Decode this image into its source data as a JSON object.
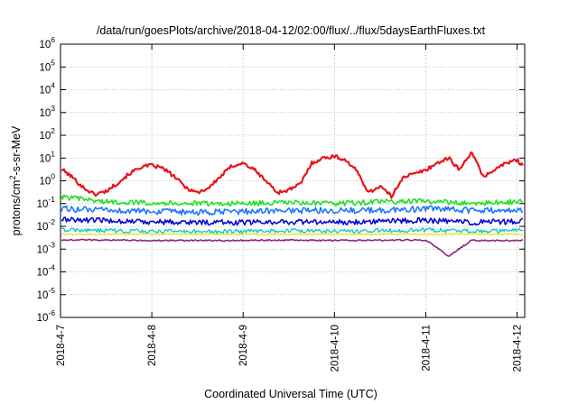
{
  "chart_data": {
    "type": "line",
    "title": "/data/run/goesPlots/archive/2018-04-12/02:00/flux/../flux/5daysEarthFluxes.txt",
    "xlabel": "Coordinated Universal Time (UTC)",
    "ylabel": {
      "prefix": "protons/cm",
      "sup": "2",
      "suffix": "-s-sr-MeV"
    },
    "y_scale": "log",
    "ylim": [
      1e-06,
      1000000.0
    ],
    "y_ticks": [
      {
        "exp": -6,
        "base": "10",
        "sup": "-6"
      },
      {
        "exp": -5,
        "base": "10",
        "sup": "-5"
      },
      {
        "exp": -4,
        "base": "10",
        "sup": "-4"
      },
      {
        "exp": -3,
        "base": "10",
        "sup": "-3"
      },
      {
        "exp": -2,
        "base": "10",
        "sup": "-2"
      },
      {
        "exp": -1,
        "base": "10",
        "sup": "-1"
      },
      {
        "exp": 0,
        "base": "10",
        "sup": "0"
      },
      {
        "exp": 1,
        "base": "10",
        "sup": "1"
      },
      {
        "exp": 2,
        "base": "10",
        "sup": "2"
      },
      {
        "exp": 3,
        "base": "10",
        "sup": "3"
      },
      {
        "exp": 4,
        "base": "10",
        "sup": "4"
      },
      {
        "exp": 5,
        "base": "10",
        "sup": "5"
      },
      {
        "exp": 6,
        "base": "10",
        "sup": "6"
      }
    ],
    "xlim": [
      "2018-04-07T00:00",
      "2018-04-12T02:00"
    ],
    "x_ticks": [
      {
        "date": "2018-04-07T00:00",
        "label": "2018-4-7"
      },
      {
        "date": "2018-04-08T00:00",
        "label": "2018-4-8"
      },
      {
        "date": "2018-04-09T00:00",
        "label": "2018-4-9"
      },
      {
        "date": "2018-04-10T00:00",
        "label": "2018-4-10"
      },
      {
        "date": "2018-04-11T00:00",
        "label": "2018-4-11"
      },
      {
        "date": "2018-04-12T00:00",
        "label": "2018-4-12"
      }
    ],
    "grid": true,
    "grid_style": "dotted",
    "series": [
      {
        "color": "#e8141a",
        "width": 2.2,
        "x": [
          "2018-04-07T00:00",
          "2018-04-07T03:00",
          "2018-04-07T06:00",
          "2018-04-07T09:00",
          "2018-04-07T12:00",
          "2018-04-07T15:00",
          "2018-04-07T18:00",
          "2018-04-07T21:00",
          "2018-04-08T00:00",
          "2018-04-08T03:00",
          "2018-04-08T06:00",
          "2018-04-08T09:00",
          "2018-04-08T12:00",
          "2018-04-08T15:00",
          "2018-04-08T18:00",
          "2018-04-08T21:00",
          "2018-04-09T00:00",
          "2018-04-09T03:00",
          "2018-04-09T06:00",
          "2018-04-09T09:00",
          "2018-04-09T12:00",
          "2018-04-09T15:00",
          "2018-04-09T18:00",
          "2018-04-09T21:00",
          "2018-04-10T00:00",
          "2018-04-10T03:00",
          "2018-04-10T06:00",
          "2018-04-10T09:00",
          "2018-04-10T12:00",
          "2018-04-10T15:00",
          "2018-04-10T18:00",
          "2018-04-10T21:00",
          "2018-04-11T00:00",
          "2018-04-11T03:00",
          "2018-04-11T06:00",
          "2018-04-11T09:00",
          "2018-04-11T12:00",
          "2018-04-11T15:00",
          "2018-04-11T18:00",
          "2018-04-11T21:00",
          "2018-04-12T00:00",
          "2018-04-12T02:00"
        ],
        "y": [
          3.5,
          1.5,
          0.5,
          0.25,
          0.35,
          0.8,
          2.0,
          4.0,
          4.8,
          3.5,
          1.5,
          0.5,
          0.3,
          0.5,
          1.5,
          4.5,
          6.0,
          3.0,
          1.0,
          0.3,
          0.4,
          0.7,
          6.0,
          10.0,
          12.0,
          8.0,
          2.5,
          0.3,
          0.6,
          0.2,
          1.5,
          2.0,
          3.0,
          6.0,
          10.0,
          3.0,
          20.0,
          1.5,
          3.0,
          6.0,
          8.0,
          4.0
        ]
      },
      {
        "color": "#22e022",
        "width": 1.6,
        "x": [
          "2018-04-07T00:00",
          "2018-04-07T12:00",
          "2018-04-08T00:00",
          "2018-04-08T12:00",
          "2018-04-09T00:00",
          "2018-04-09T12:00",
          "2018-04-10T00:00",
          "2018-04-10T12:00",
          "2018-04-11T00:00",
          "2018-04-11T12:00",
          "2018-04-12T00:00",
          "2018-04-12T02:00"
        ],
        "y": [
          0.2,
          0.12,
          0.11,
          0.1,
          0.1,
          0.11,
          0.1,
          0.12,
          0.13,
          0.1,
          0.12,
          0.13
        ]
      },
      {
        "color": "#1e78ff",
        "width": 1.6,
        "x": [
          "2018-04-07T00:00",
          "2018-04-07T12:00",
          "2018-04-08T00:00",
          "2018-04-08T12:00",
          "2018-04-09T00:00",
          "2018-04-09T12:00",
          "2018-04-10T00:00",
          "2018-04-10T12:00",
          "2018-04-11T00:00",
          "2018-04-11T12:00",
          "2018-04-12T00:00",
          "2018-04-12T02:00"
        ],
        "y": [
          0.06,
          0.05,
          0.045,
          0.04,
          0.045,
          0.05,
          0.05,
          0.05,
          0.06,
          0.05,
          0.05,
          0.06
        ]
      },
      {
        "color": "#0a0ad2",
        "width": 1.6,
        "x": [
          "2018-04-07T00:00",
          "2018-04-07T12:00",
          "2018-04-08T00:00",
          "2018-04-08T12:00",
          "2018-04-09T00:00",
          "2018-04-09T12:00",
          "2018-04-10T00:00",
          "2018-04-10T12:00",
          "2018-04-11T00:00",
          "2018-04-11T12:00",
          "2018-04-12T00:00",
          "2018-04-12T02:00"
        ],
        "y": [
          0.02,
          0.018,
          0.016,
          0.015,
          0.015,
          0.016,
          0.015,
          0.017,
          0.018,
          0.015,
          0.016,
          0.02
        ]
      },
      {
        "color": "#14c8c8",
        "width": 1.4,
        "x": [
          "2018-04-07T00:00",
          "2018-04-07T12:00",
          "2018-04-08T00:00",
          "2018-04-08T12:00",
          "2018-04-09T00:00",
          "2018-04-09T12:00",
          "2018-04-10T00:00",
          "2018-04-10T12:00",
          "2018-04-11T00:00",
          "2018-04-11T12:00",
          "2018-04-12T00:00",
          "2018-04-12T02:00"
        ],
        "y": [
          0.007,
          0.0065,
          0.006,
          0.006,
          0.006,
          0.0065,
          0.006,
          0.0065,
          0.007,
          0.006,
          0.0065,
          0.007
        ]
      },
      {
        "color": "#e6e61e",
        "width": 1.4,
        "x": [
          "2018-04-07T00:00",
          "2018-04-08T00:00",
          "2018-04-09T00:00",
          "2018-04-10T00:00",
          "2018-04-11T00:00",
          "2018-04-12T00:00",
          "2018-04-12T02:00"
        ],
        "y": [
          0.0045,
          0.0045,
          0.0045,
          0.0045,
          0.0045,
          0.0045,
          0.0045
        ]
      },
      {
        "color": "#8c287a",
        "width": 1.6,
        "x": [
          "2018-04-07T00:00",
          "2018-04-07T12:00",
          "2018-04-08T00:00",
          "2018-04-08T12:00",
          "2018-04-09T00:00",
          "2018-04-09T12:00",
          "2018-04-10T00:00",
          "2018-04-10T12:00",
          "2018-04-11T00:00",
          "2018-04-11T06:00",
          "2018-04-11T12:00",
          "2018-04-12T00:00",
          "2018-04-12T02:00"
        ],
        "y": [
          0.0025,
          0.0025,
          0.0024,
          0.0024,
          0.0024,
          0.0025,
          0.0024,
          0.0025,
          0.0025,
          0.0005,
          0.0024,
          0.0024,
          0.0024
        ]
      }
    ]
  }
}
